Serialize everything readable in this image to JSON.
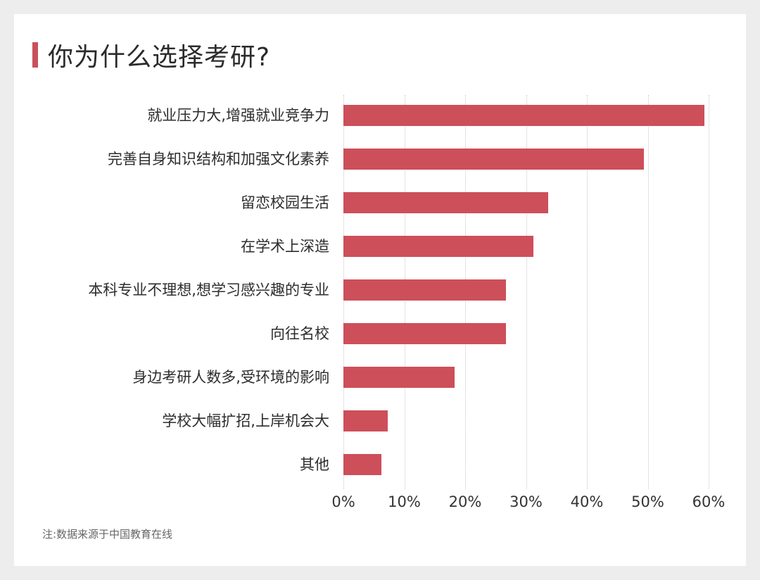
{
  "title": "你为什么选择考研?",
  "note": "注:数据来源于中国教育在线",
  "colors": {
    "bar": "#cd4f5a",
    "accent": "#c9505b",
    "background": "#ededed"
  },
  "axis": {
    "ticks": [
      "0%",
      "10%",
      "20%",
      "30%",
      "40%",
      "50%",
      "60%"
    ]
  },
  "chart_data": {
    "type": "bar",
    "orientation": "horizontal",
    "title": "你为什么选择考研?",
    "xlabel": "",
    "ylabel": "",
    "xlim": [
      0,
      60
    ],
    "unit": "%",
    "grid": true,
    "categories": [
      "就业压力大,增强就业竞争力",
      "完善自身知识结构和加强文化素养",
      "留恋校园生活",
      "在学术上深造",
      "本科专业不理想,想学习感兴趣的专业",
      "向往名校",
      "身边考研人数多,受环境的影响",
      "学校大幅扩招,上岸机会大",
      "其他"
    ],
    "values": [
      59.3,
      49.4,
      33.6,
      31.2,
      26.7,
      26.7,
      18.3,
      7.3,
      6.2
    ],
    "note": "注:数据来源于中国教育在线"
  }
}
